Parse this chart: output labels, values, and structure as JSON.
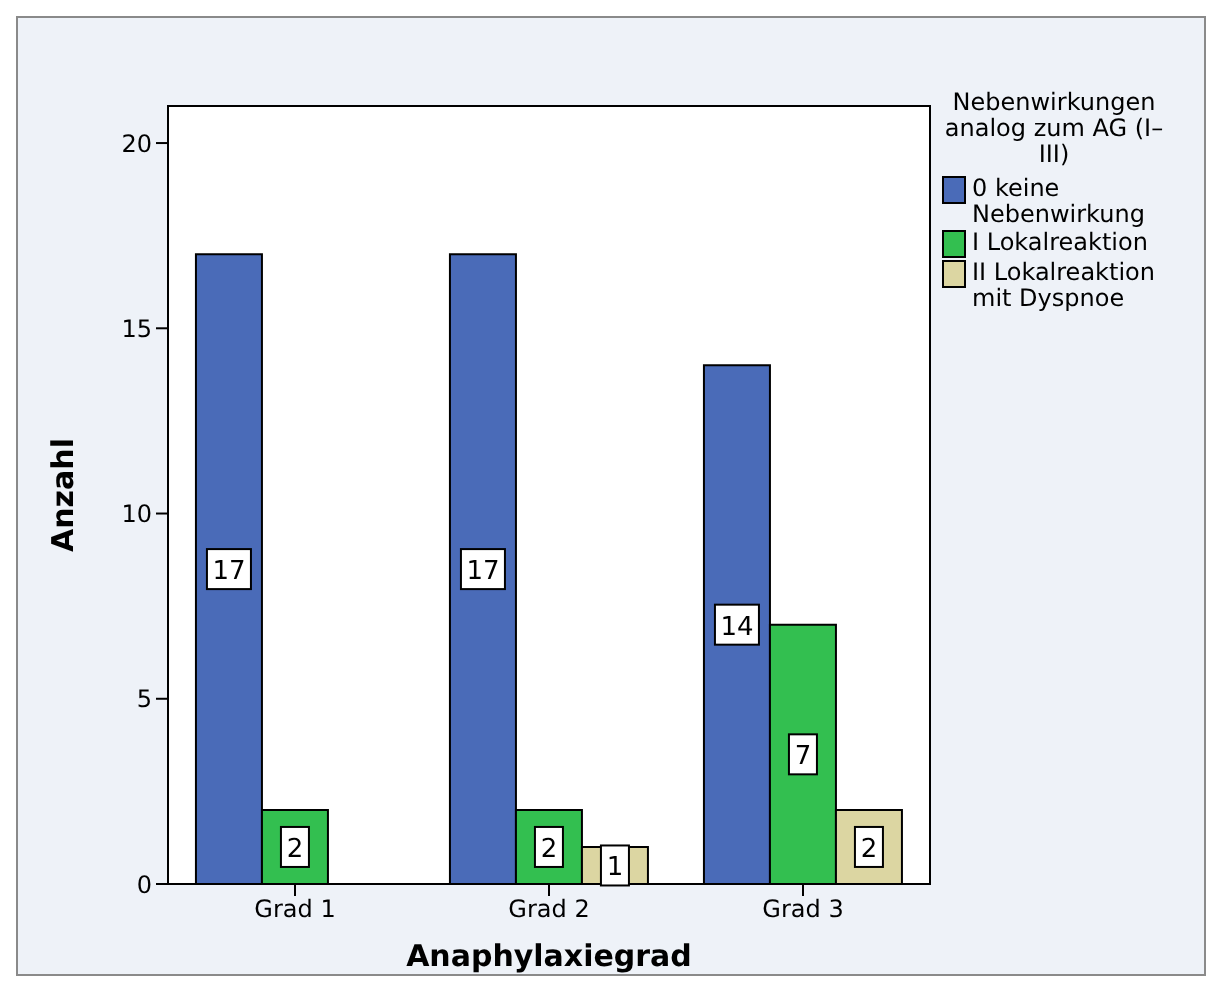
{
  "chart_data": {
    "type": "bar",
    "xlabel": "Anaphylaxiegrad",
    "ylabel": "Anzahl",
    "legend_title": "Nebenwirkungen analog zum AG (I–III)",
    "categories": [
      "Grad 1",
      "Grad 2",
      "Grad 3"
    ],
    "series": [
      {
        "name": "0 keine Nebenwirkung",
        "color": "#4a6bb8",
        "values": [
          17,
          17,
          14
        ]
      },
      {
        "name": "I Lokalreaktion",
        "color": "#33bf50",
        "values": [
          2,
          2,
          7
        ]
      },
      {
        "name": "II Lokalreaktion mit Dyspnoe",
        "color": "#dcd6a2",
        "values": [
          null,
          1,
          2
        ]
      }
    ],
    "ylim": [
      0,
      21
    ],
    "yticks": [
      0,
      5,
      10,
      15,
      20
    ],
    "legend": "right",
    "data_labels": true
  }
}
